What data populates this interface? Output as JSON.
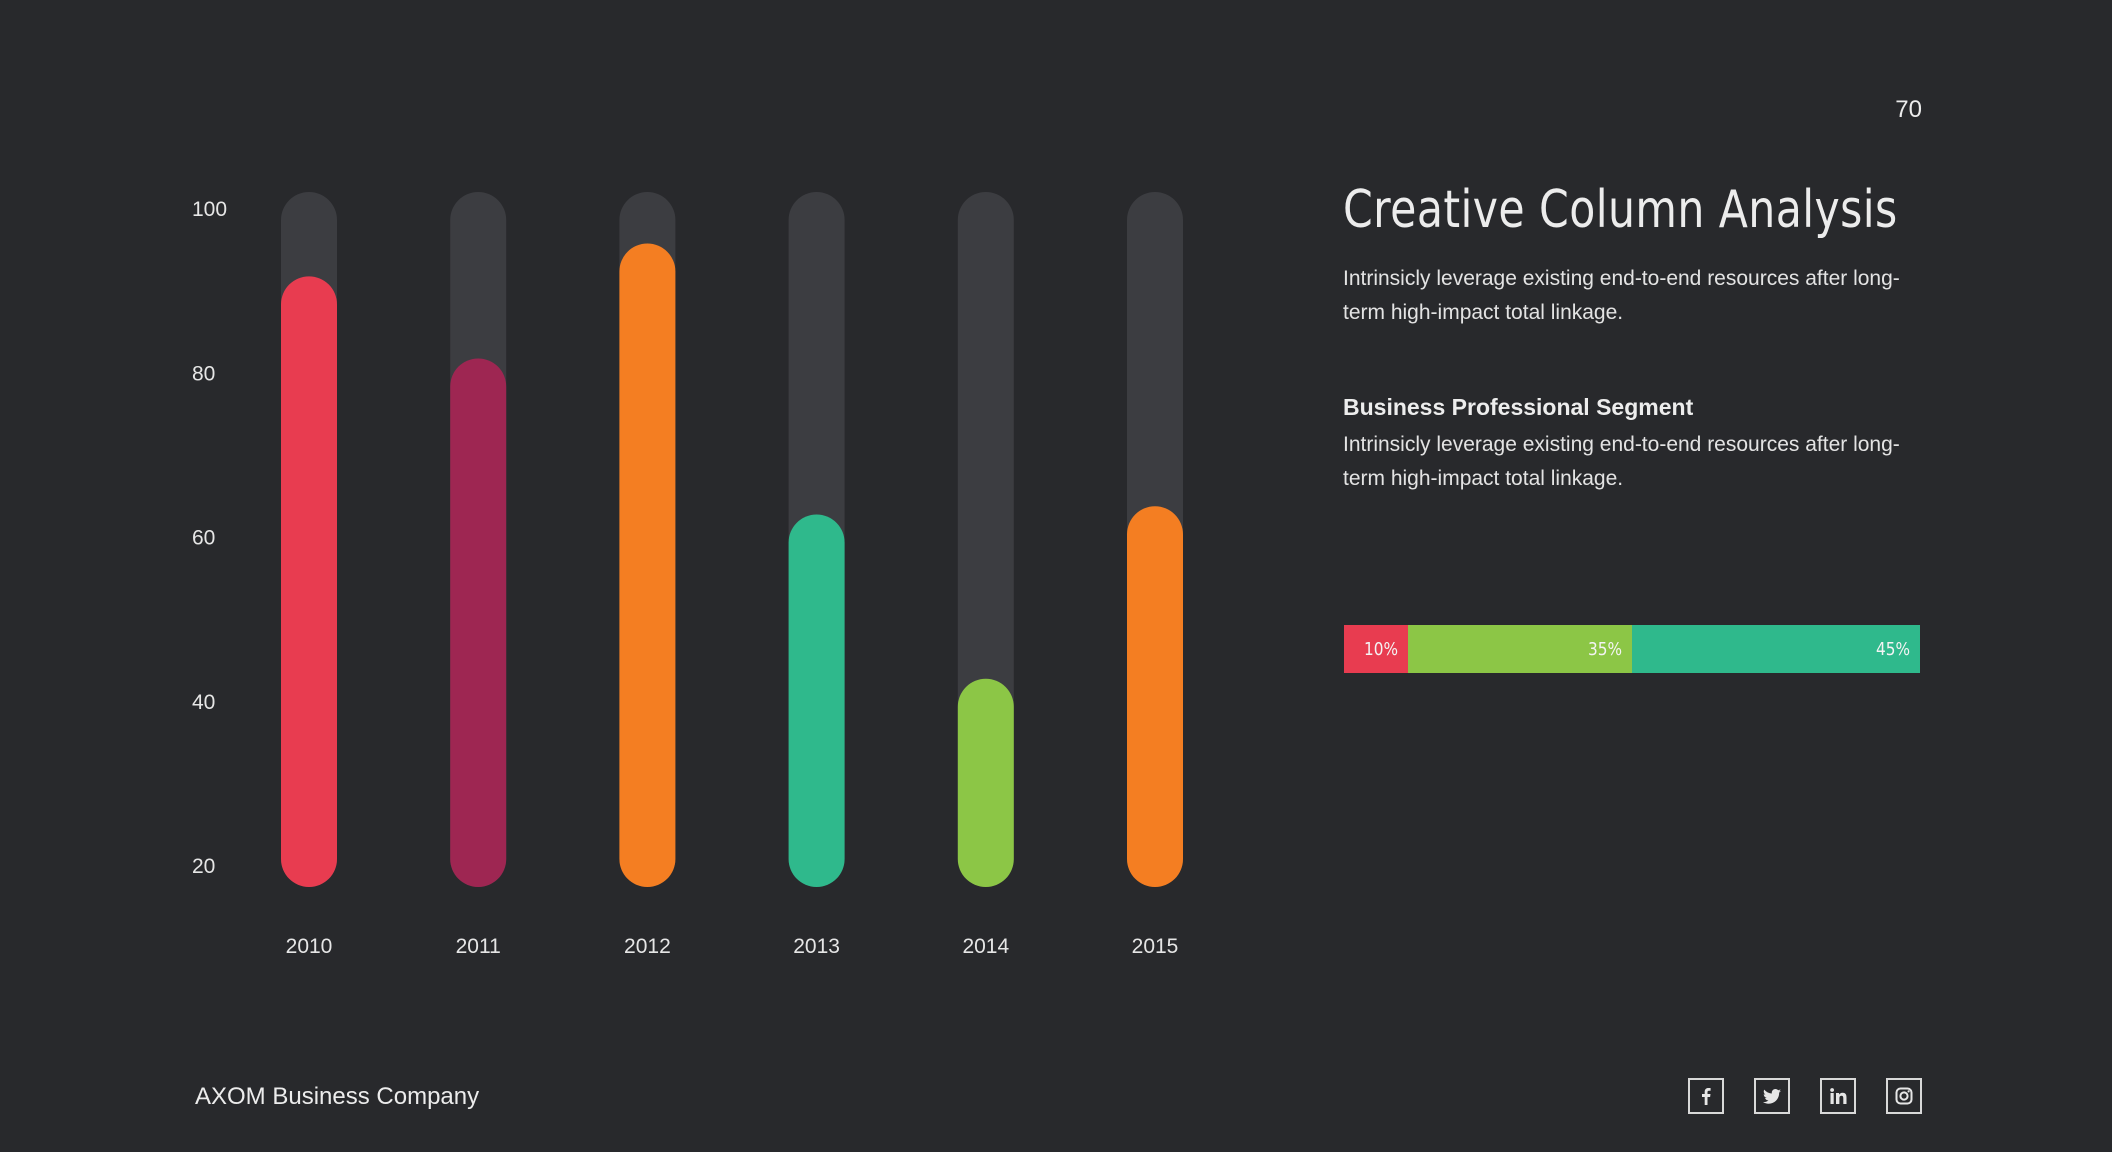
{
  "page_number": "70",
  "title": "Creative Column Analysis",
  "description_1": "Intrinsicly leverage existing end-to-end resources after long-term high-impact total linkage.",
  "segment_title": "Business Professional Segment",
  "description_2": "Intrinsicly leverage existing end-to-end resources after long-term high-impact total linkage.",
  "stacked_bar": [
    {
      "label": "10%",
      "value": 10,
      "color": "#e83c50"
    },
    {
      "label": "35%",
      "value": 35,
      "color": "#8cc646"
    },
    {
      "label": "45%",
      "value": 45,
      "color": "#2fb98c"
    }
  ],
  "footer": {
    "company": "AXOM Business Company",
    "social_icons": [
      "facebook-icon",
      "twitter-icon",
      "linkedin-icon",
      "instagram-icon"
    ]
  },
  "colors": {
    "background": "#28292c",
    "track": "#3c3d41"
  },
  "chart_data": {
    "type": "bar",
    "categories": [
      "2010",
      "2011",
      "2012",
      "2013",
      "2014",
      "2015"
    ],
    "values": [
      89,
      79,
      93,
      60,
      40,
      61
    ],
    "colors": [
      "#e83c50",
      "#9e2652",
      "#f47e22",
      "#2fb98c",
      "#8cc646",
      "#f47e22"
    ],
    "yticks": [
      20,
      40,
      60,
      80,
      100
    ],
    "ylim": [
      20,
      100
    ],
    "xlabel": "",
    "ylabel": ""
  }
}
